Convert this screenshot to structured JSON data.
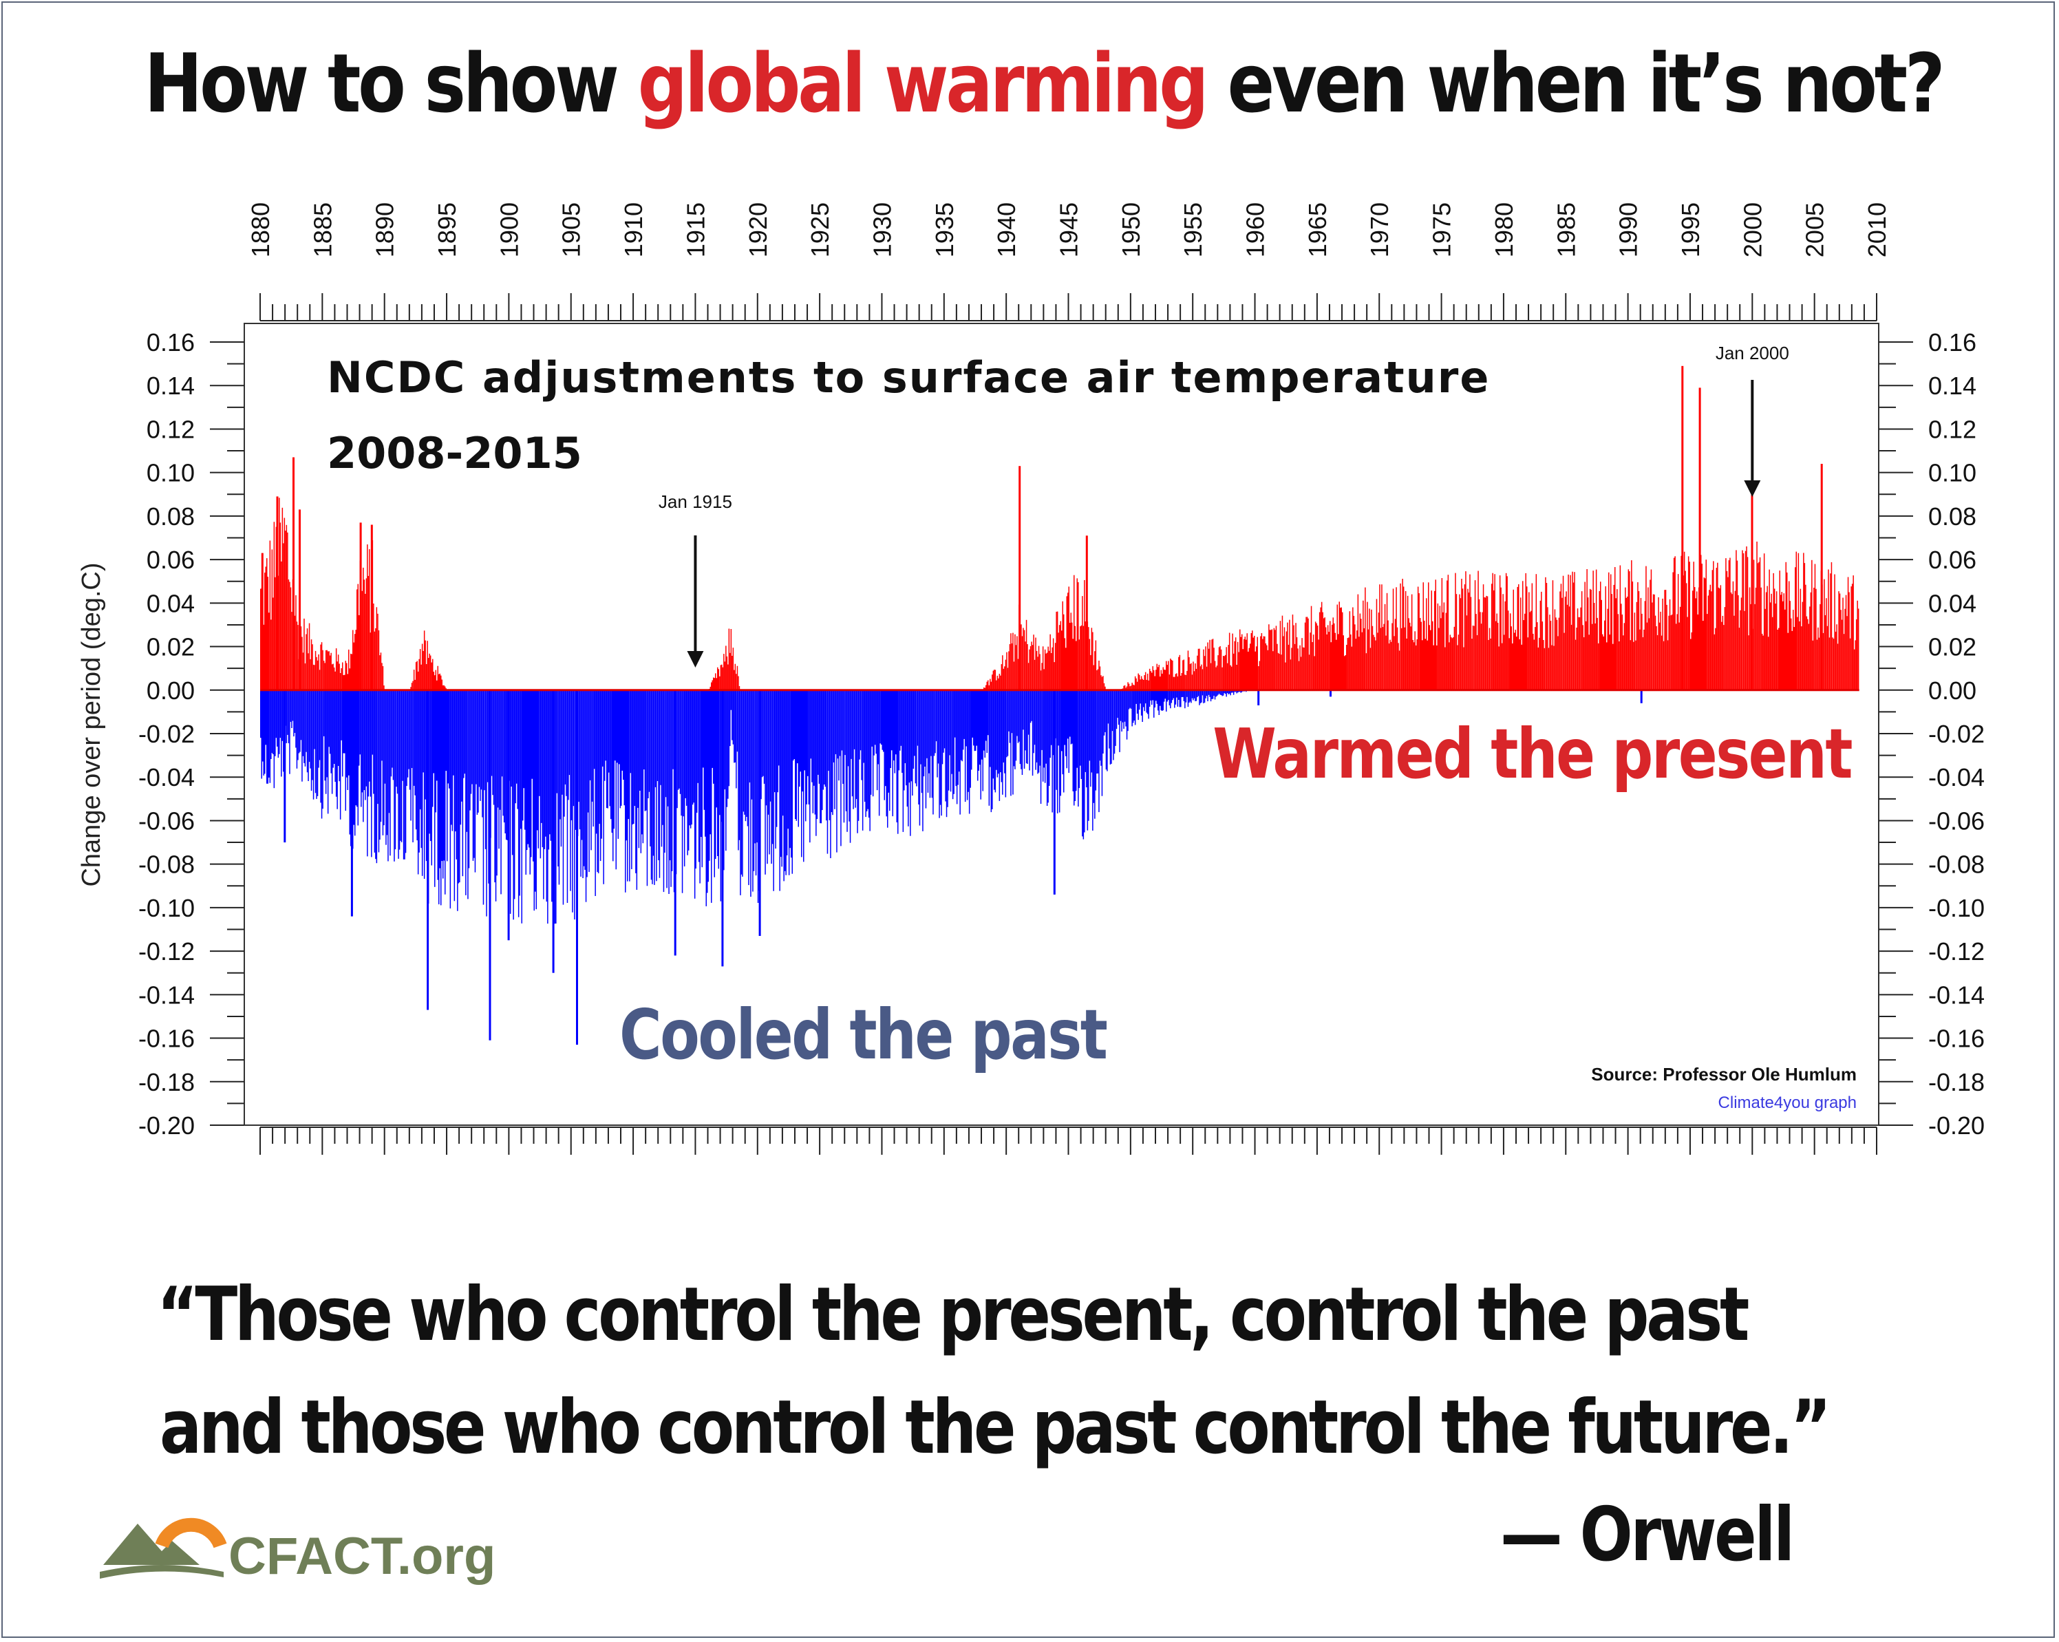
{
  "headline": {
    "part1": "How to show ",
    "highlight": "global warming",
    "part2": " even when it’s not?"
  },
  "colors": {
    "positive": "#ff0000",
    "negative": "#0000ff",
    "zero_line": "#e00000",
    "cooled_label": "#4a5a86",
    "warmed_label": "#d9262a",
    "highlight": "#d9262a",
    "logo": "#6f7f57",
    "logo_arc": "#f08a24"
  },
  "chart_data": {
    "type": "bar",
    "title": "NCDC adjustments to surface air temperature",
    "subtitle": "2008-2015",
    "ylabel": "Change over period (deg.C)",
    "xlabel": "",
    "xlim": [
      1880,
      2010
    ],
    "ylim": [
      -0.2,
      0.16
    ],
    "x_ticks": [
      "1880",
      "1885",
      "1890",
      "1895",
      "1900",
      "1905",
      "1910",
      "1915",
      "1920",
      "1925",
      "1930",
      "1935",
      "1940",
      "1945",
      "1950",
      "1955",
      "1960",
      "1965",
      "1970",
      "1975",
      "1980",
      "1985",
      "1990",
      "1995",
      "2000",
      "2005",
      "2010"
    ],
    "y_ticks": [
      "0.16",
      "0.14",
      "0.12",
      "0.10",
      "0.08",
      "0.06",
      "0.04",
      "0.02",
      "0.00",
      "-0.02",
      "-0.04",
      "-0.06",
      "-0.08",
      "-0.10",
      "-0.12",
      "-0.14",
      "-0.16",
      "-0.18",
      "-0.20"
    ],
    "grid": false,
    "resolution": "monthly",
    "annotations": [
      {
        "text": "Jan 1915",
        "x": 1915.0,
        "y": 0.0
      },
      {
        "text": "Jan 2000",
        "x": 2000.0,
        "y": 0.09
      }
    ],
    "labels": {
      "cooled": "Cooled the past",
      "warmed": "Warmed the present"
    },
    "source": "Source: Professor Ole Humlum",
    "credit": "Climate4you graph",
    "envelope": [
      {
        "x": 1880.0,
        "lo": -0.04,
        "hi": 0.06
      },
      {
        "x": 1881.0,
        "lo": -0.05,
        "hi": 0.08
      },
      {
        "x": 1882.0,
        "lo": -0.04,
        "hi": 0.1
      },
      {
        "x": 1883.0,
        "lo": -0.04,
        "hi": 0.04
      },
      {
        "x": 1884.0,
        "lo": -0.05,
        "hi": 0.03
      },
      {
        "x": 1885.0,
        "lo": -0.06,
        "hi": 0.025
      },
      {
        "x": 1886.0,
        "lo": -0.06,
        "hi": 0.02
      },
      {
        "x": 1887.0,
        "lo": -0.07,
        "hi": 0.015
      },
      {
        "x": 1888.0,
        "lo": -0.08,
        "hi": 0.07
      },
      {
        "x": 1889.0,
        "lo": -0.08,
        "hi": 0.07
      },
      {
        "x": 1890.0,
        "lo": -0.08,
        "hi": 0.0
      },
      {
        "x": 1892.0,
        "lo": -0.09,
        "hi": 0.0
      },
      {
        "x": 1893.0,
        "lo": -0.1,
        "hi": 0.03
      },
      {
        "x": 1895.0,
        "lo": -0.1,
        "hi": 0.0
      },
      {
        "x": 1898.0,
        "lo": -0.11,
        "hi": 0.0
      },
      {
        "x": 1900.0,
        "lo": -0.11,
        "hi": 0.0
      },
      {
        "x": 1903.0,
        "lo": -0.11,
        "hi": 0.0
      },
      {
        "x": 1905.0,
        "lo": -0.11,
        "hi": 0.0
      },
      {
        "x": 1908.0,
        "lo": -0.09,
        "hi": 0.0
      },
      {
        "x": 1911.0,
        "lo": -0.1,
        "hi": 0.0
      },
      {
        "x": 1914.0,
        "lo": -0.1,
        "hi": 0.0
      },
      {
        "x": 1916.0,
        "lo": -0.1,
        "hi": 0.0
      },
      {
        "x": 1917.4,
        "lo": -0.1,
        "hi": 0.02
      },
      {
        "x": 1917.8,
        "lo": -0.02,
        "hi": 0.035
      },
      {
        "x": 1918.6,
        "lo": -0.1,
        "hi": 0.0
      },
      {
        "x": 1920.0,
        "lo": -0.1,
        "hi": 0.0
      },
      {
        "x": 1923.0,
        "lo": -0.09,
        "hi": 0.0
      },
      {
        "x": 1926.0,
        "lo": -0.08,
        "hi": 0.0
      },
      {
        "x": 1929.0,
        "lo": -0.07,
        "hi": 0.0
      },
      {
        "x": 1932.0,
        "lo": -0.07,
        "hi": 0.0
      },
      {
        "x": 1935.0,
        "lo": -0.06,
        "hi": 0.0
      },
      {
        "x": 1938.0,
        "lo": -0.06,
        "hi": 0.0
      },
      {
        "x": 1940.0,
        "lo": -0.05,
        "hi": 0.02
      },
      {
        "x": 1941.0,
        "lo": -0.05,
        "hi": 0.04
      },
      {
        "x": 1942.0,
        "lo": -0.04,
        "hi": 0.03
      },
      {
        "x": 1943.0,
        "lo": -0.06,
        "hi": 0.02
      },
      {
        "x": 1944.0,
        "lo": -0.06,
        "hi": 0.04
      },
      {
        "x": 1945.0,
        "lo": -0.06,
        "hi": 0.05
      },
      {
        "x": 1946.0,
        "lo": -0.07,
        "hi": 0.06
      },
      {
        "x": 1947.0,
        "lo": -0.07,
        "hi": 0.03
      },
      {
        "x": 1948.0,
        "lo": -0.04,
        "hi": 0.0
      },
      {
        "x": 1949.0,
        "lo": -0.03,
        "hi": 0.0
      },
      {
        "x": 1950.0,
        "lo": -0.02,
        "hi": 0.005
      },
      {
        "x": 1951.0,
        "lo": -0.015,
        "hi": 0.01
      },
      {
        "x": 1953.0,
        "lo": -0.01,
        "hi": 0.015
      },
      {
        "x": 1955.0,
        "lo": -0.008,
        "hi": 0.02
      },
      {
        "x": 1957.0,
        "lo": -0.004,
        "hi": 0.025
      },
      {
        "x": 1960.0,
        "lo": 0.0,
        "hi": 0.03
      },
      {
        "x": 1965.0,
        "lo": 0.0,
        "hi": 0.04
      },
      {
        "x": 1970.0,
        "lo": 0.0,
        "hi": 0.05
      },
      {
        "x": 1975.0,
        "lo": 0.0,
        "hi": 0.055
      },
      {
        "x": 1980.0,
        "lo": 0.0,
        "hi": 0.055
      },
      {
        "x": 1985.0,
        "lo": 0.0,
        "hi": 0.055
      },
      {
        "x": 1990.0,
        "lo": 0.0,
        "hi": 0.06
      },
      {
        "x": 1995.0,
        "lo": 0.0,
        "hi": 0.065
      },
      {
        "x": 2000.0,
        "lo": 0.0,
        "hi": 0.07
      },
      {
        "x": 2003.0,
        "lo": 0.0,
        "hi": 0.065
      },
      {
        "x": 2006.0,
        "lo": 0.0,
        "hi": 0.06
      },
      {
        "x": 2008.0,
        "lo": 0.0,
        "hi": 0.055
      },
      {
        "x": 2008.5,
        "lo": 0.0,
        "hi": 0.05
      }
    ],
    "spikes": [
      {
        "x": 1880.1,
        "value": 0.063
      },
      {
        "x": 1880.5,
        "value": -0.043
      },
      {
        "x": 1881.3,
        "value": 0.089
      },
      {
        "x": 1881.9,
        "value": -0.07
      },
      {
        "x": 1882.6,
        "value": 0.107
      },
      {
        "x": 1883.1,
        "value": 0.083
      },
      {
        "x": 1888.0,
        "value": 0.077
      },
      {
        "x": 1888.9,
        "value": 0.076
      },
      {
        "x": 1887.3,
        "value": -0.104
      },
      {
        "x": 1893.4,
        "value": -0.147
      },
      {
        "x": 1898.4,
        "value": -0.161
      },
      {
        "x": 1903.5,
        "value": -0.13
      },
      {
        "x": 1905.4,
        "value": -0.163
      },
      {
        "x": 1899.9,
        "value": -0.115
      },
      {
        "x": 1913.3,
        "value": -0.122
      },
      {
        "x": 1917.1,
        "value": -0.127
      },
      {
        "x": 1920.1,
        "value": -0.113
      },
      {
        "x": 1941.0,
        "value": 0.103
      },
      {
        "x": 1943.8,
        "value": -0.094
      },
      {
        "x": 1946.4,
        "value": 0.071
      },
      {
        "x": 1994.3,
        "value": 0.149
      },
      {
        "x": 1995.7,
        "value": 0.139
      },
      {
        "x": 1999.9,
        "value": 0.094
      },
      {
        "x": 2005.5,
        "value": 0.104
      },
      {
        "x": 1960.2,
        "value": -0.007
      },
      {
        "x": 1966.0,
        "value": -0.003
      },
      {
        "x": 1991.0,
        "value": -0.006
      }
    ]
  },
  "quote": {
    "line1": "“Those who control the present, control the past",
    "line2": "and those who control the past control the future.”",
    "attribution": "— Orwell"
  },
  "logo": {
    "text": "CFACT.org"
  }
}
